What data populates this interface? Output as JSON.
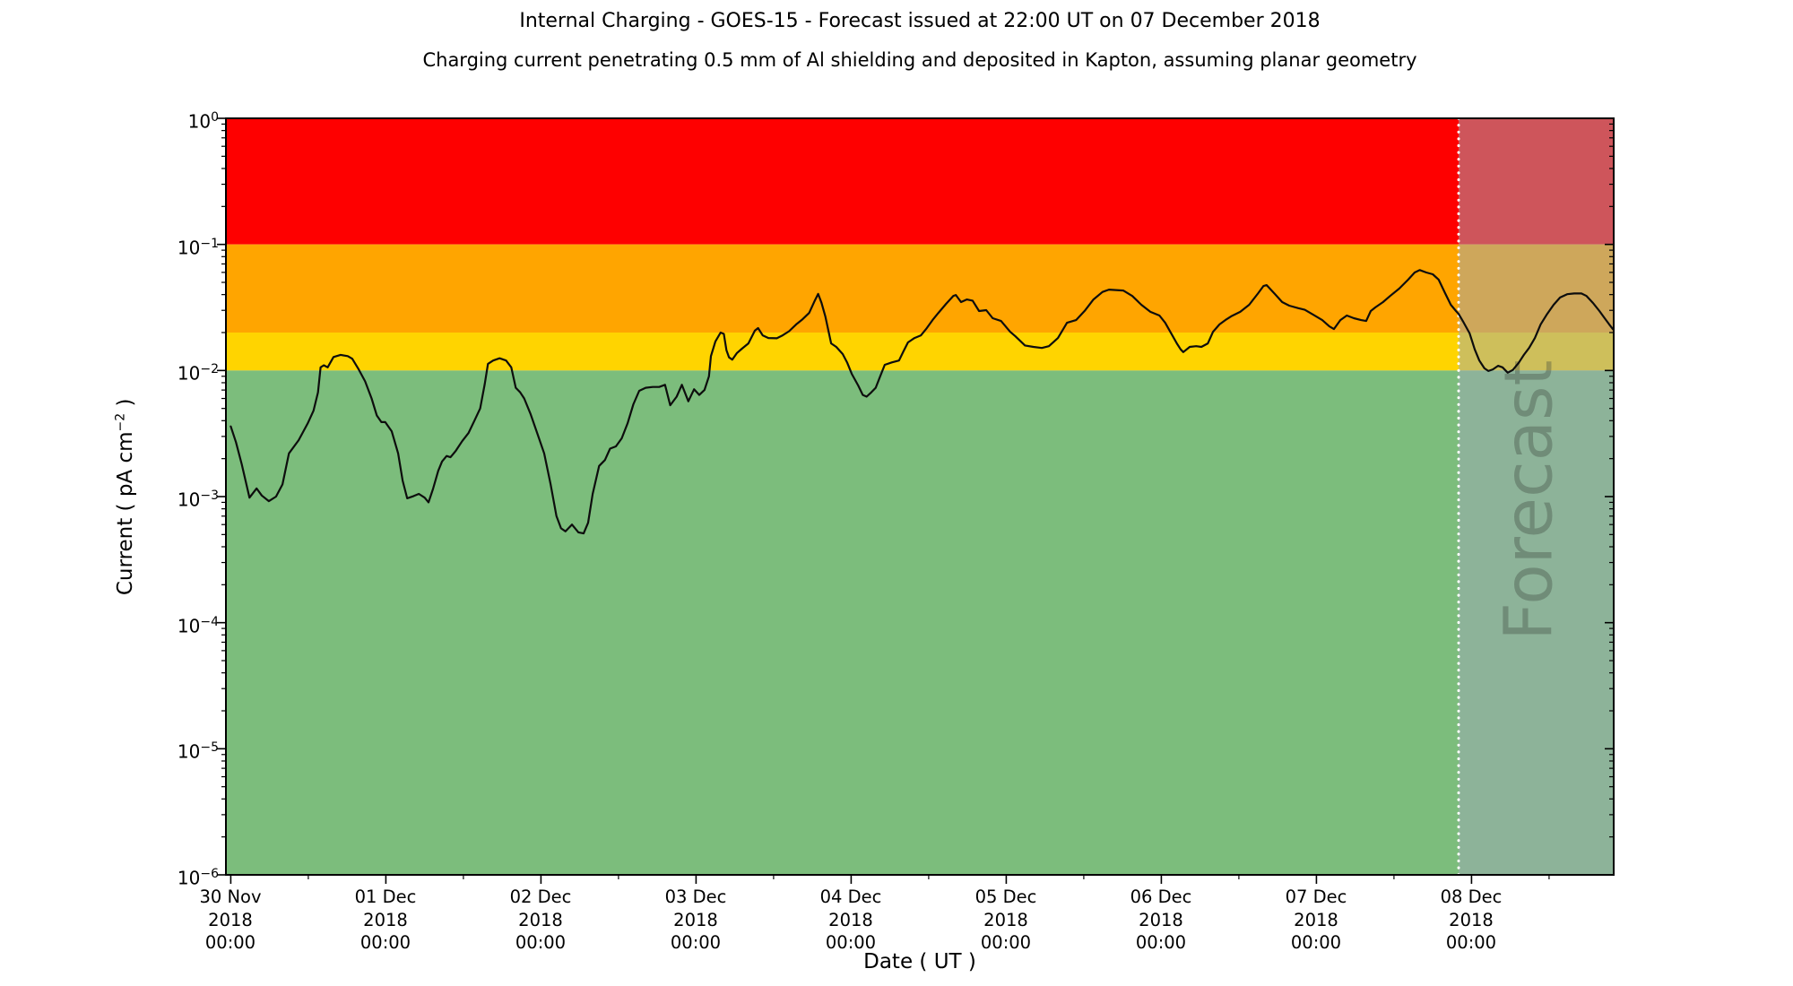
{
  "chart_data": {
    "type": "line",
    "title": "Internal Charging - GOES-15 - Forecast issued at 22:00 UT on 07 December 2018",
    "subtitle": "Charging current penetrating 0.5 mm of Al shielding and deposited in Kapton, assuming planar geometry",
    "xlabel": "Date ( UT )",
    "ylabel_text": "Current ( pA cm⁻² )",
    "ylabel_parts": {
      "pre": "Current ( pA cm",
      "sup": "−2",
      "post": " )"
    },
    "y_scale": "log10",
    "y_domain": [
      1e-06,
      1
    ],
    "x_domain_hours": [
      -0.75,
      214
    ],
    "x_epoch": "30 Nov 2018 00:00 UT",
    "grid": false,
    "legend": "none",
    "bands": [
      {
        "name": "red",
        "from": 0.1,
        "to": 1.0,
        "color": "#fe0000"
      },
      {
        "name": "orange",
        "from": 0.02,
        "to": 0.1,
        "color": "#ffa500"
      },
      {
        "name": "yellow",
        "from": 0.01,
        "to": 0.02,
        "color": "#ffd400"
      },
      {
        "name": "green",
        "from": 1e-06,
        "to": 0.01,
        "color": "#7cbd7c"
      }
    ],
    "forecast": {
      "label": "Forecast",
      "start_hour": 190,
      "start_label": "07 Dec 2018 22:00 UT",
      "overlay_color": "rgba(158,170,182,0.5)",
      "divider_color": "#ffffff",
      "label_color": "rgb(60,70,60)",
      "label_opacity": 0.35
    },
    "x_ticks": [
      {
        "hour": 0,
        "date": "30 Nov",
        "year": "2018",
        "time": "00:00"
      },
      {
        "hour": 24,
        "date": "01 Dec",
        "year": "2018",
        "time": "00:00"
      },
      {
        "hour": 48,
        "date": "02 Dec",
        "year": "2018",
        "time": "00:00"
      },
      {
        "hour": 72,
        "date": "03 Dec",
        "year": "2018",
        "time": "00:00"
      },
      {
        "hour": 96,
        "date": "04 Dec",
        "year": "2018",
        "time": "00:00"
      },
      {
        "hour": 120,
        "date": "05 Dec",
        "year": "2018",
        "time": "00:00"
      },
      {
        "hour": 144,
        "date": "06 Dec",
        "year": "2018",
        "time": "00:00"
      },
      {
        "hour": 168,
        "date": "07 Dec",
        "year": "2018",
        "time": "00:00"
      },
      {
        "hour": 192,
        "date": "08 Dec",
        "year": "2018",
        "time": "00:00"
      }
    ],
    "x_minor_hours": [
      12,
      36,
      60,
      84,
      108,
      132,
      156,
      180,
      204
    ],
    "y_tick_exponents": [
      0,
      -1,
      -2,
      -3,
      -4,
      -5,
      -6
    ],
    "series": {
      "name": "GOES-15 internal charging current",
      "color": "#0d0d0d",
      "units": "pA cm⁻²",
      "points": [
        [
          0,
          0.0036
        ],
        [
          0.8,
          0.0027
        ],
        [
          1.7,
          0.0018
        ],
        [
          2.9,
          0.00098
        ],
        [
          4,
          0.00116
        ],
        [
          4.8,
          0.00102
        ],
        [
          5.9,
          0.00092
        ],
        [
          7,
          0.001
        ],
        [
          8,
          0.00125
        ],
        [
          9,
          0.0022
        ],
        [
          10.5,
          0.0028
        ],
        [
          11.9,
          0.0038
        ],
        [
          12.8,
          0.0048
        ],
        [
          13.5,
          0.0067
        ],
        [
          13.9,
          0.0106
        ],
        [
          14.4,
          0.011
        ],
        [
          15,
          0.0106
        ],
        [
          15.9,
          0.0128
        ],
        [
          17,
          0.0133
        ],
        [
          18.1,
          0.013
        ],
        [
          18.8,
          0.0124
        ],
        [
          19.8,
          0.0102
        ],
        [
          20.8,
          0.0082
        ],
        [
          21.8,
          0.006
        ],
        [
          22.6,
          0.0044
        ],
        [
          23.3,
          0.0039
        ],
        [
          23.9,
          0.0039
        ],
        [
          24.9,
          0.0033
        ],
        [
          25.9,
          0.0022
        ],
        [
          26.6,
          0.00134
        ],
        [
          27.3,
          0.00097
        ],
        [
          28.3,
          0.00101
        ],
        [
          29.1,
          0.00105
        ],
        [
          30,
          0.00098
        ],
        [
          30.6,
          0.0009
        ],
        [
          31.3,
          0.00115
        ],
        [
          32.1,
          0.0016
        ],
        [
          32.7,
          0.0019
        ],
        [
          33.4,
          0.0021
        ],
        [
          34,
          0.00205
        ],
        [
          34.8,
          0.0023
        ],
        [
          35.8,
          0.00275
        ],
        [
          36.8,
          0.0032
        ],
        [
          37.8,
          0.0041
        ],
        [
          38.6,
          0.005
        ],
        [
          39.3,
          0.0078
        ],
        [
          39.8,
          0.0113
        ],
        [
          40.6,
          0.012
        ],
        [
          41.6,
          0.0125
        ],
        [
          42.6,
          0.012
        ],
        [
          43.4,
          0.0106
        ],
        [
          44.1,
          0.0073
        ],
        [
          44.8,
          0.0067
        ],
        [
          45.4,
          0.006
        ],
        [
          46.4,
          0.0045
        ],
        [
          47.5,
          0.0031
        ],
        [
          48.5,
          0.0022
        ],
        [
          49.5,
          0.00125
        ],
        [
          50.4,
          0.0007
        ],
        [
          51.1,
          0.00056
        ],
        [
          51.8,
          0.00053
        ],
        [
          52.8,
          0.0006
        ],
        [
          53.8,
          0.00052
        ],
        [
          54.6,
          0.00051
        ],
        [
          55.3,
          0.00062
        ],
        [
          56,
          0.00105
        ],
        [
          57,
          0.00175
        ],
        [
          57.9,
          0.00195
        ],
        [
          58.7,
          0.0024
        ],
        [
          59.6,
          0.0025
        ],
        [
          60.5,
          0.0029
        ],
        [
          61.4,
          0.0038
        ],
        [
          62.3,
          0.0054
        ],
        [
          63.2,
          0.0069
        ],
        [
          64.2,
          0.0073
        ],
        [
          65.3,
          0.0074
        ],
        [
          66.3,
          0.0074
        ],
        [
          67.2,
          0.0077
        ],
        [
          68,
          0.0053
        ],
        [
          69,
          0.0062
        ],
        [
          69.8,
          0.0077
        ],
        [
          70.8,
          0.0057
        ],
        [
          71.7,
          0.0071
        ],
        [
          72.5,
          0.0064
        ],
        [
          73.3,
          0.007
        ],
        [
          74,
          0.009
        ],
        [
          74.3,
          0.013
        ],
        [
          75,
          0.017
        ],
        [
          75.8,
          0.02
        ],
        [
          76.3,
          0.0195
        ],
        [
          76.7,
          0.0145
        ],
        [
          77.1,
          0.0127
        ],
        [
          77.6,
          0.0122
        ],
        [
          78.3,
          0.0137
        ],
        [
          79.1,
          0.0149
        ],
        [
          80.1,
          0.0164
        ],
        [
          81.1,
          0.0207
        ],
        [
          81.6,
          0.0217
        ],
        [
          82.3,
          0.019
        ],
        [
          83.2,
          0.0181
        ],
        [
          84.5,
          0.018
        ],
        [
          85.4,
          0.019
        ],
        [
          86.4,
          0.0205
        ],
        [
          87.5,
          0.0232
        ],
        [
          88.5,
          0.0255
        ],
        [
          89.5,
          0.0286
        ],
        [
          90.4,
          0.036
        ],
        [
          90.9,
          0.0405
        ],
        [
          91.4,
          0.0345
        ],
        [
          92,
          0.0269
        ],
        [
          92.9,
          0.0164
        ],
        [
          93.7,
          0.0154
        ],
        [
          94.7,
          0.0135
        ],
        [
          95.4,
          0.0115
        ],
        [
          96.1,
          0.0094
        ],
        [
          97.1,
          0.0076
        ],
        [
          97.8,
          0.0064
        ],
        [
          98.4,
          0.0062
        ],
        [
          99.1,
          0.0067
        ],
        [
          99.8,
          0.0073
        ],
        [
          100.5,
          0.009
        ],
        [
          101.2,
          0.0111
        ],
        [
          102.3,
          0.0116
        ],
        [
          103.4,
          0.012
        ],
        [
          104.1,
          0.0142
        ],
        [
          104.8,
          0.0167
        ],
        [
          105.8,
          0.0181
        ],
        [
          106.8,
          0.019
        ],
        [
          107.6,
          0.0213
        ],
        [
          108.6,
          0.0251
        ],
        [
          109.5,
          0.0286
        ],
        [
          110.7,
          0.0338
        ],
        [
          111.8,
          0.039
        ],
        [
          112.2,
          0.0397
        ],
        [
          113,
          0.0349
        ],
        [
          113.9,
          0.0366
        ],
        [
          114.8,
          0.0358
        ],
        [
          115.8,
          0.0296
        ],
        [
          116.9,
          0.0301
        ],
        [
          117.9,
          0.026
        ],
        [
          119.2,
          0.0247
        ],
        [
          120.6,
          0.0203
        ],
        [
          121.4,
          0.0187
        ],
        [
          122.9,
          0.0158
        ],
        [
          124.2,
          0.0154
        ],
        [
          125.5,
          0.0151
        ],
        [
          126.6,
          0.0156
        ],
        [
          128,
          0.0181
        ],
        [
          129.4,
          0.0239
        ],
        [
          130.8,
          0.0251
        ],
        [
          132.2,
          0.03
        ],
        [
          133.5,
          0.0366
        ],
        [
          134.9,
          0.042
        ],
        [
          135.9,
          0.0438
        ],
        [
          138.1,
          0.0431
        ],
        [
          139.5,
          0.039
        ],
        [
          140.9,
          0.0332
        ],
        [
          142.3,
          0.0292
        ],
        [
          143.7,
          0.0273
        ],
        [
          144.6,
          0.0239
        ],
        [
          145.6,
          0.0194
        ],
        [
          146.4,
          0.0164
        ],
        [
          147,
          0.0147
        ],
        [
          147.4,
          0.014
        ],
        [
          148.4,
          0.0154
        ],
        [
          149.4,
          0.0156
        ],
        [
          150.2,
          0.0154
        ],
        [
          151.2,
          0.0164
        ],
        [
          152,
          0.0203
        ],
        [
          153,
          0.0232
        ],
        [
          153.9,
          0.0251
        ],
        [
          154.8,
          0.0269
        ],
        [
          156.2,
          0.0292
        ],
        [
          157.6,
          0.0332
        ],
        [
          159,
          0.0411
        ],
        [
          159.8,
          0.0468
        ],
        [
          160.3,
          0.0475
        ],
        [
          161.6,
          0.0403
        ],
        [
          162.7,
          0.0349
        ],
        [
          163.8,
          0.0327
        ],
        [
          165.2,
          0.0312
        ],
        [
          166.2,
          0.0303
        ],
        [
          167.5,
          0.0277
        ],
        [
          168.9,
          0.0251
        ],
        [
          170,
          0.0224
        ],
        [
          170.7,
          0.0213
        ],
        [
          171.7,
          0.0251
        ],
        [
          172.7,
          0.0273
        ],
        [
          173.8,
          0.026
        ],
        [
          174.9,
          0.0251
        ],
        [
          175.7,
          0.0247
        ],
        [
          176.4,
          0.0296
        ],
        [
          177.1,
          0.0316
        ],
        [
          178.3,
          0.0349
        ],
        [
          179.4,
          0.039
        ],
        [
          180.8,
          0.0446
        ],
        [
          182.2,
          0.0526
        ],
        [
          183.2,
          0.0599
        ],
        [
          184,
          0.0626
        ],
        [
          185,
          0.0599
        ],
        [
          186,
          0.0579
        ],
        [
          186.9,
          0.0526
        ],
        [
          187.9,
          0.0411
        ],
        [
          188.8,
          0.0332
        ],
        [
          189.6,
          0.0296
        ],
        [
          190,
          0.0281
        ],
        [
          190.8,
          0.0239
        ],
        [
          191.7,
          0.0197
        ],
        [
          192.5,
          0.0147
        ],
        [
          193.2,
          0.012
        ],
        [
          194,
          0.0104
        ],
        [
          194.6,
          0.0099
        ],
        [
          195.3,
          0.0102
        ],
        [
          196.1,
          0.0109
        ],
        [
          196.8,
          0.0106
        ],
        [
          197.6,
          0.0096
        ],
        [
          198.4,
          0.0101
        ],
        [
          199.3,
          0.0115
        ],
        [
          200.1,
          0.0133
        ],
        [
          200.9,
          0.0151
        ],
        [
          201.8,
          0.0181
        ],
        [
          202.7,
          0.0232
        ],
        [
          203.7,
          0.0281
        ],
        [
          204.7,
          0.0332
        ],
        [
          205.7,
          0.0379
        ],
        [
          206.8,
          0.0403
        ],
        [
          207.9,
          0.0408
        ],
        [
          209,
          0.0408
        ],
        [
          209.8,
          0.039
        ],
        [
          210.8,
          0.0343
        ],
        [
          211.8,
          0.0296
        ],
        [
          212.6,
          0.026
        ],
        [
          213.3,
          0.0232
        ],
        [
          213.9,
          0.0212
        ]
      ]
    }
  }
}
